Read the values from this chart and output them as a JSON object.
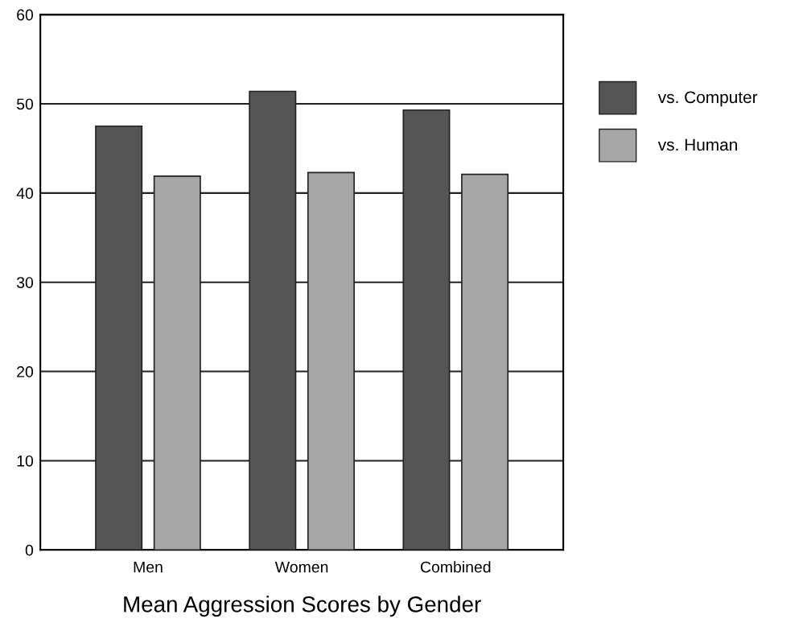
{
  "chart_data": {
    "type": "bar",
    "xlabel": "Mean Aggression Scores by Gender",
    "categories": [
      "Men",
      "Women",
      "Combined"
    ],
    "series": [
      {
        "name": "vs. Computer",
        "color": "#555555",
        "values": [
          47.5,
          51.4,
          49.3
        ]
      },
      {
        "name": "vs. Human",
        "color": "#a6a6a6",
        "values": [
          41.9,
          42.3,
          42.1
        ]
      }
    ],
    "ylim": [
      0,
      60
    ],
    "yticks": [
      0,
      10,
      20,
      30,
      40,
      50,
      60
    ],
    "grid": "y",
    "legend": "right"
  }
}
